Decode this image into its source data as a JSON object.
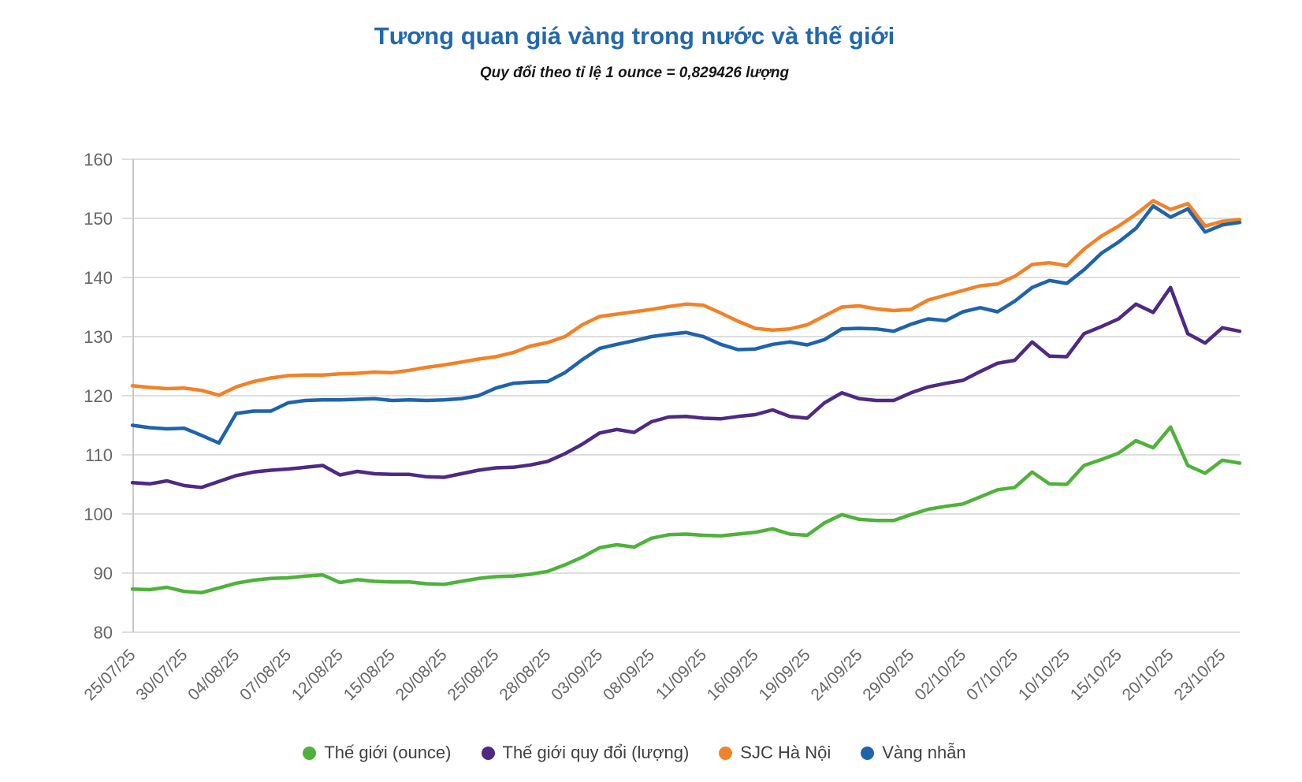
{
  "chart_data": {
    "type": "line",
    "title": "Tương quan giá vàng trong nước và thế giới",
    "subtitle": "Quy đổi theo tỉ lệ 1 ounce = 0,829426 lượng",
    "xlabel": "",
    "ylabel": "",
    "ylim": [
      80,
      160
    ],
    "y_tick_step": 10,
    "grid": true,
    "legend_position": "bottom",
    "x_label_every": 3,
    "x_labels": [
      "25/07/25",
      "30/07/25",
      "04/08/25",
      "07/08/25",
      "12/08/25",
      "15/08/25",
      "20/08/25",
      "25/08/25",
      "28/08/25",
      "03/09/25",
      "08/09/25",
      "11/09/25",
      "16/09/25",
      "19/09/25",
      "24/09/25",
      "29/09/25",
      "02/10/25",
      "07/10/25",
      "10/10/25",
      "15/10/25",
      "20/10/25",
      "23/10/25"
    ],
    "axis_text_color": "#666666",
    "gridline_color": "#dedede",
    "axis_line_color": "#c8c8c8",
    "title_color": "#2268ae",
    "series": [
      {
        "name": "Thế giới (ounce)",
        "key": "the-gioi-ounce",
        "color": "#4fb23b",
        "values": [
          87.3,
          87.2,
          87.6,
          86.9,
          86.7,
          87.5,
          88.3,
          88.8,
          89.1,
          89.2,
          89.5,
          89.7,
          88.4,
          88.9,
          88.6,
          88.5,
          88.5,
          88.2,
          88.1,
          88.6,
          89.1,
          89.4,
          89.5,
          89.8,
          90.3,
          91.4,
          92.7,
          94.3,
          94.8,
          94.4,
          95.9,
          96.5,
          96.6,
          96.4,
          96.3,
          96.6,
          96.9,
          97.5,
          96.6,
          96.4,
          98.5,
          99.9,
          99.1,
          98.9,
          98.9,
          99.9,
          100.8,
          101.3,
          101.7,
          102.9,
          104.1,
          104.5,
          107.1,
          105.1,
          105.0,
          108.2,
          109.2,
          110.3,
          112.4,
          111.2,
          114.7,
          108.2,
          106.9,
          109.1,
          108.6
        ]
      },
      {
        "name": "Thế giới quy đổi (lượng)",
        "key": "the-gioi-quy-doi-luong",
        "color": "#4e2a84",
        "values": [
          105.3,
          105.1,
          105.6,
          104.8,
          104.5,
          105.5,
          106.5,
          107.1,
          107.4,
          107.6,
          107.9,
          108.2,
          106.6,
          107.2,
          106.8,
          106.7,
          106.7,
          106.3,
          106.2,
          106.8,
          107.4,
          107.8,
          107.9,
          108.3,
          108.9,
          110.2,
          111.8,
          113.7,
          114.3,
          113.8,
          115.6,
          116.4,
          116.5,
          116.2,
          116.1,
          116.5,
          116.8,
          117.6,
          116.5,
          116.2,
          118.8,
          120.5,
          119.5,
          119.2,
          119.2,
          120.5,
          121.5,
          122.1,
          122.6,
          124.1,
          125.5,
          126.0,
          129.1,
          126.7,
          126.6,
          130.5,
          131.7,
          133.0,
          135.5,
          134.1,
          138.3,
          130.5,
          128.9,
          131.5,
          130.9
        ]
      },
      {
        "name": "SJC Hà Nội",
        "key": "sjc-ha-noi",
        "color": "#f28227",
        "values": [
          121.7,
          121.4,
          121.2,
          121.3,
          120.9,
          120.1,
          121.5,
          122.4,
          123.0,
          123.4,
          123.5,
          123.5,
          123.7,
          123.8,
          124.0,
          123.9,
          124.3,
          124.8,
          125.2,
          125.7,
          126.2,
          126.6,
          127.3,
          128.4,
          129.0,
          130.0,
          132.0,
          133.4,
          133.8,
          134.2,
          134.6,
          135.1,
          135.5,
          135.3,
          134.0,
          132.6,
          131.4,
          131.1,
          131.3,
          132.0,
          133.5,
          135.0,
          135.2,
          134.7,
          134.4,
          134.6,
          136.2,
          137.0,
          137.8,
          138.6,
          138.9,
          140.2,
          142.2,
          142.5,
          142.0,
          144.8,
          147.0,
          148.7,
          150.7,
          153.0,
          151.5,
          152.5,
          148.7,
          149.5,
          149.8
        ]
      },
      {
        "name": "Vàng nhẫn",
        "key": "vang-nhan",
        "color": "#1f63ac",
        "values": [
          115.0,
          114.6,
          114.4,
          114.5,
          113.3,
          112.0,
          117.0,
          117.4,
          117.4,
          118.8,
          119.2,
          119.3,
          119.3,
          119.4,
          119.5,
          119.2,
          119.3,
          119.2,
          119.3,
          119.5,
          120.0,
          121.3,
          122.1,
          122.3,
          122.4,
          123.9,
          126.1,
          128.0,
          128.7,
          129.3,
          130.0,
          130.4,
          130.7,
          130.0,
          128.7,
          127.8,
          127.9,
          128.7,
          129.1,
          128.6,
          129.5,
          131.3,
          131.4,
          131.3,
          130.9,
          132.1,
          133.0,
          132.7,
          134.2,
          134.9,
          134.2,
          136.0,
          138.3,
          139.5,
          139.0,
          141.3,
          144.1,
          146.0,
          148.3,
          152.1,
          150.2,
          151.6,
          147.7,
          148.9,
          149.3
        ]
      }
    ]
  }
}
